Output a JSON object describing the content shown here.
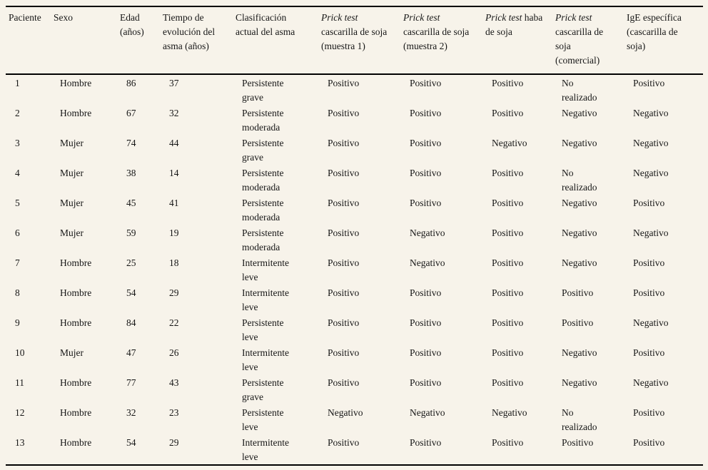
{
  "page": {
    "background_color": "#f7f3ea",
    "text_color": "#161616",
    "rule_color": "#000000"
  },
  "table": {
    "columns": [
      {
        "text": "Paciente"
      },
      {
        "text": "Sexo"
      },
      {
        "text": "Edad\n(años)"
      },
      {
        "text": "Tiempo de\nevolución del\nasma (años)"
      },
      {
        "text": "Clasificación\nactual del asma"
      },
      {
        "italic": "Prick test",
        "text": "\ncascarilla de soja\n(muestra 1)"
      },
      {
        "italic": "Prick test",
        "text": "\ncascarilla de soja\n(muestra 2)"
      },
      {
        "italic": "Prick test",
        "text": " haba\nde soja"
      },
      {
        "italic": "Prick test",
        "text": "\ncascarilla de\nsoja\n(comercial)"
      },
      {
        "text": "IgE específica\n(cascarilla de\nsoja)"
      }
    ],
    "rows": [
      [
        "1",
        "Hombre",
        "86",
        "37",
        "Persistente\ngrave",
        "Positivo",
        "Positivo",
        "Positivo",
        "No\nrealizado",
        "Positivo"
      ],
      [
        "2",
        "Hombre",
        "67",
        "32",
        "Persistente\nmoderada",
        "Positivo",
        "Positivo",
        "Positivo",
        "Negativo",
        "Negativo"
      ],
      [
        "3",
        "Mujer",
        "74",
        "44",
        "Persistente\ngrave",
        "Positivo",
        "Positivo",
        "Negativo",
        "Negativo",
        "Negativo"
      ],
      [
        "4",
        "Mujer",
        "38",
        "14",
        "Persistente\nmoderada",
        "Positivo",
        "Positivo",
        "Positivo",
        "No\nrealizado",
        "Negativo"
      ],
      [
        "5",
        "Mujer",
        "45",
        "41",
        "Persistente\nmoderada",
        "Positivo",
        "Positivo",
        "Positivo",
        "Negativo",
        "Positivo"
      ],
      [
        "6",
        "Mujer",
        "59",
        "19",
        "Persistente\nmoderada",
        "Positivo",
        "Negativo",
        "Positivo",
        "Negativo",
        "Negativo"
      ],
      [
        "7",
        "Hombre",
        "25",
        "18",
        "Intermitente\nleve",
        "Positivo",
        "Negativo",
        "Positivo",
        "Negativo",
        "Positivo"
      ],
      [
        "8",
        "Hombre",
        "54",
        "29",
        "Intermitente\nleve",
        "Positivo",
        "Positivo",
        "Positivo",
        "Positivo",
        "Positivo"
      ],
      [
        "9",
        "Hombre",
        "84",
        "22",
        "Persistente\nleve",
        "Positivo",
        "Positivo",
        "Positivo",
        "Positivo",
        "Negativo"
      ],
      [
        "10",
        "Mujer",
        "47",
        "26",
        "Intermitente\nleve",
        "Positivo",
        "Positivo",
        "Positivo",
        "Negativo",
        "Positivo"
      ],
      [
        "11",
        "Hombre",
        "77",
        "43",
        "Persistente\ngrave",
        "Positivo",
        "Positivo",
        "Positivo",
        "Negativo",
        "Negativo"
      ],
      [
        "12",
        "Hombre",
        "32",
        "23",
        "Persistente\nleve",
        "Negativo",
        "Negativo",
        "Negativo",
        "No\nrealizado",
        "Positivo"
      ],
      [
        "13",
        "Hombre",
        "54",
        "29",
        "Intermitente\nleve",
        "Positivo",
        "Positivo",
        "Positivo",
        "Positivo",
        "Positivo"
      ]
    ]
  }
}
